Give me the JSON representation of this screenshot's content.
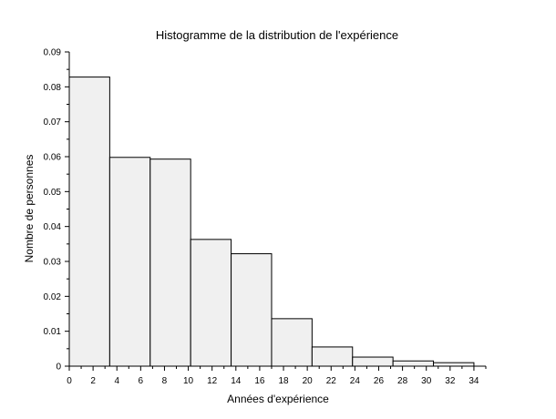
{
  "chart_data": {
    "type": "bar",
    "title": "Histogramme de la distribution de l'expérience",
    "xlabel": "Années d'expérience",
    "ylabel": "Nombre de personnes",
    "bins": [
      {
        "x0": 0,
        "x1": 3.4,
        "value": 0.0828
      },
      {
        "x0": 3.4,
        "x1": 6.8,
        "value": 0.0598
      },
      {
        "x0": 6.8,
        "x1": 10.2,
        "value": 0.0593
      },
      {
        "x0": 10.2,
        "x1": 13.6,
        "value": 0.0363
      },
      {
        "x0": 13.6,
        "x1": 17.0,
        "value": 0.0322
      },
      {
        "x0": 17.0,
        "x1": 20.4,
        "value": 0.0136
      },
      {
        "x0": 20.4,
        "x1": 23.8,
        "value": 0.0055
      },
      {
        "x0": 23.8,
        "x1": 27.2,
        "value": 0.0026
      },
      {
        "x0": 27.2,
        "x1": 30.6,
        "value": 0.0015
      },
      {
        "x0": 30.6,
        "x1": 34.0,
        "value": 0.001
      }
    ],
    "xlim": [
      0,
      35
    ],
    "ylim": [
      0,
      0.09
    ],
    "xticks": [
      0,
      2,
      4,
      6,
      8,
      10,
      12,
      14,
      16,
      18,
      20,
      22,
      24,
      26,
      28,
      30,
      32,
      34
    ],
    "yticks": [
      0,
      0.01,
      0.02,
      0.03,
      0.04,
      0.05,
      0.06,
      0.07,
      0.08,
      0.09
    ],
    "xtick_labels": [
      "0",
      "2",
      "4",
      "6",
      "8",
      "10",
      "12",
      "14",
      "16",
      "18",
      "20",
      "22",
      "24",
      "26",
      "28",
      "30",
      "32",
      "34"
    ],
    "ytick_labels": [
      "0",
      "0.01",
      "0.02",
      "0.03",
      "0.04",
      "0.05",
      "0.06",
      "0.07",
      "0.08",
      "0.09"
    ],
    "grid": false,
    "bar_fill": "#f0f0f0",
    "bar_stroke": "#000000"
  }
}
